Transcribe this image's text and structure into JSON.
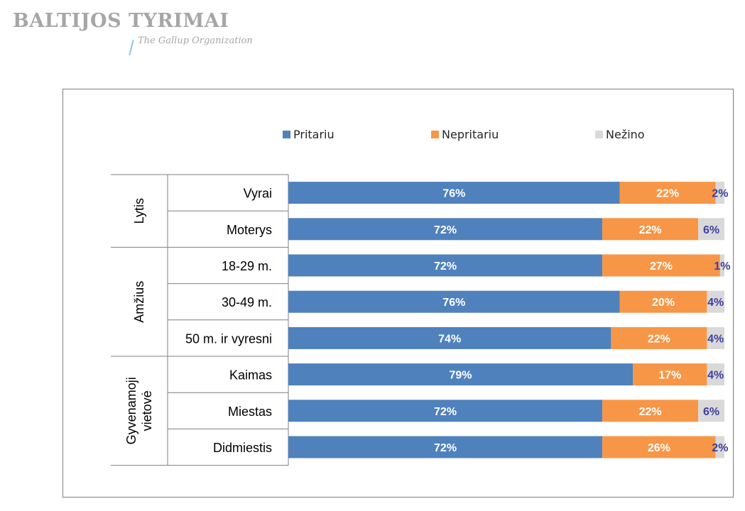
{
  "brand": {
    "title": "BALTIJOS TYRIMAI",
    "subtitle": "The Gallup Organization"
  },
  "colors": {
    "pritariu": "#4f81bd",
    "nepritariu": "#f79646",
    "nezino": "#d9d9d9",
    "small_label": "#3f3f9f",
    "bar_label": "#ffffff"
  },
  "chart_data": {
    "type": "bar",
    "orientation": "horizontal",
    "stacked": true,
    "unit": "%",
    "xlim": [
      0,
      100
    ],
    "legend_position": "top",
    "groups": [
      {
        "name": "Lytis",
        "categories": [
          "Vyrai",
          "Moterys"
        ]
      },
      {
        "name": "Amžius",
        "categories": [
          "18-29 m.",
          "30-49 m.",
          "50 m. ir vyresni"
        ]
      },
      {
        "name": "Gyvenamoji vietovė",
        "categories": [
          "Kaimas",
          "Miestas",
          "Didmiestis"
        ]
      }
    ],
    "categories": [
      "Vyrai",
      "Moterys",
      "18-29 m.",
      "30-49 m.",
      "50 m. ir vyresni",
      "Kaimas",
      "Miestas",
      "Didmiestis"
    ],
    "series": [
      {
        "name": "Pritariu",
        "values": [
          76,
          72,
          72,
          76,
          74,
          79,
          72,
          72
        ]
      },
      {
        "name": "Nepritariu",
        "values": [
          22,
          22,
          27,
          20,
          22,
          17,
          22,
          26
        ]
      },
      {
        "name": "Nežino",
        "values": [
          2,
          6,
          1,
          4,
          4,
          4,
          6,
          2
        ]
      }
    ]
  }
}
